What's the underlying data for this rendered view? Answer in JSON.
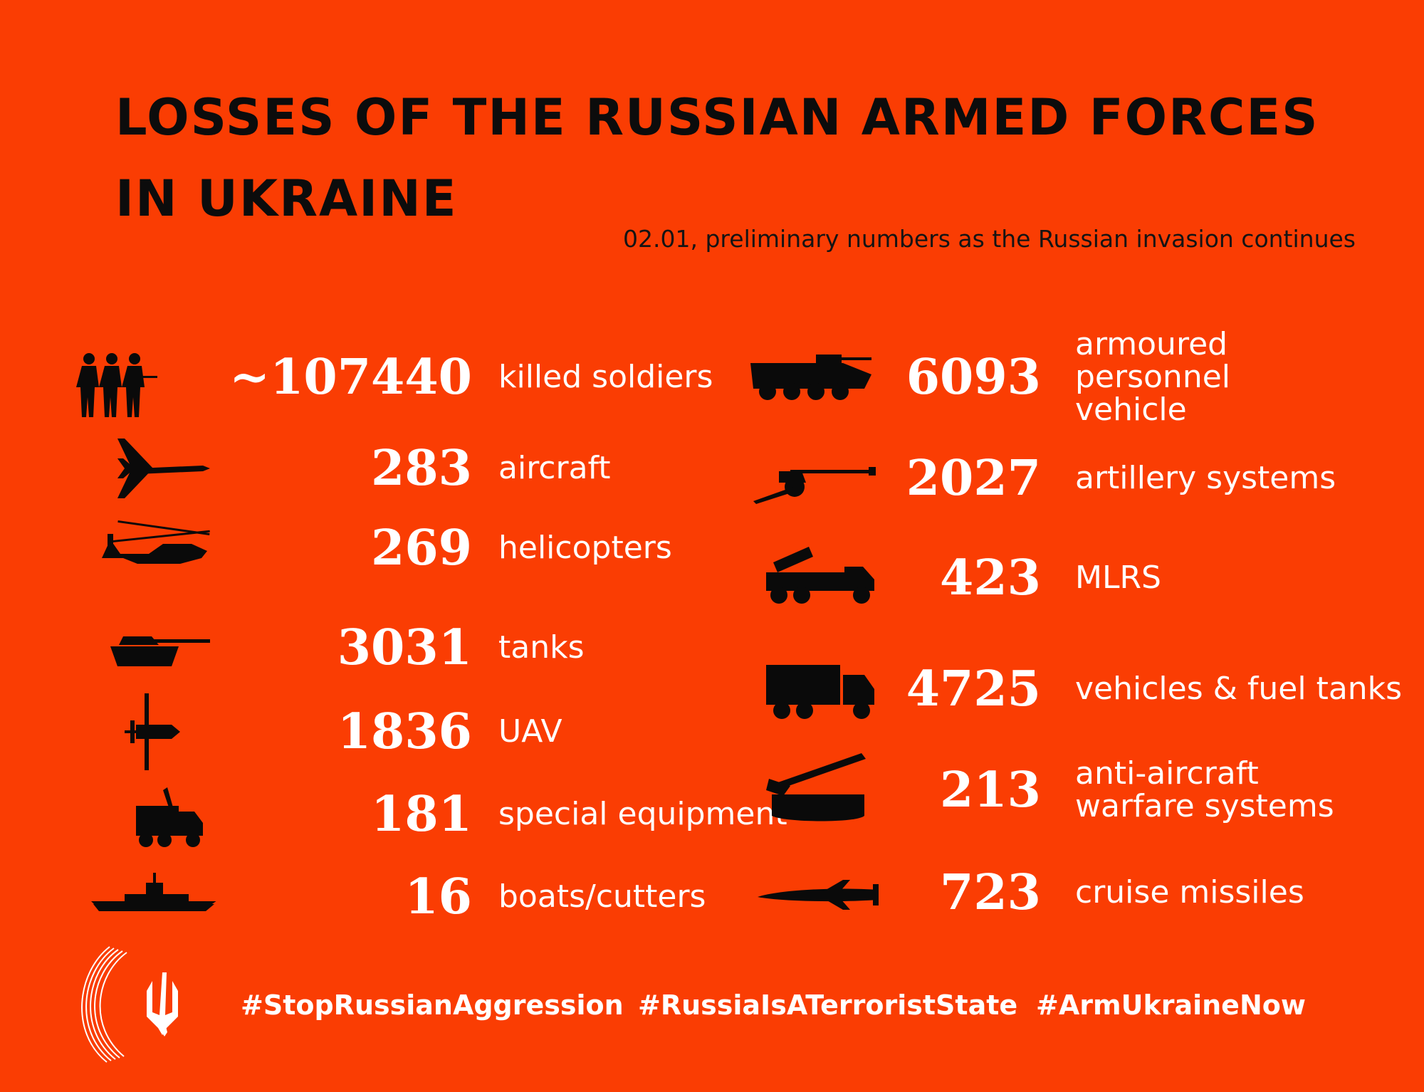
{
  "header": {
    "title": "LOSSES OF THE RUSSIAN ARMED FORCES IN UKRAINE",
    "subtitle": "02.01, preliminary numbers as the Russian invasion continues"
  },
  "left_items": [
    {
      "icon": "soldiers-icon",
      "value": "~107440",
      "label": "killed soldiers"
    },
    {
      "icon": "aircraft-icon",
      "value": "283",
      "label": "aircraft"
    },
    {
      "icon": "helicopter-icon",
      "value": "269",
      "label": "helicopters"
    },
    {
      "icon": "tank-icon",
      "value": "3031",
      "label": "tanks"
    },
    {
      "icon": "uav-icon",
      "value": "1836",
      "label": "UAV"
    },
    {
      "icon": "special-equipment-icon",
      "value": "181",
      "label": "special equipment"
    },
    {
      "icon": "boat-icon",
      "value": "16",
      "label": "boats/cutters"
    }
  ],
  "right_items": [
    {
      "icon": "apc-icon",
      "value": "6093",
      "label": "armoured\npersonnel\nvehicle"
    },
    {
      "icon": "artillery-icon",
      "value": "2027",
      "label": "artillery systems"
    },
    {
      "icon": "mlrs-icon",
      "value": "423",
      "label": "MLRS"
    },
    {
      "icon": "truck-icon",
      "value": "4725",
      "label": "vehicles & fuel tanks"
    },
    {
      "icon": "anti-aircraft-icon",
      "value": "213",
      "label": "anti-aircraft\nwarfare systems"
    },
    {
      "icon": "cruise-missile-icon",
      "value": "723",
      "label": "cruise missiles"
    }
  ],
  "footer": {
    "hashtags": [
      "#StopRussianAggression",
      "#RussiaIsATerroristState",
      "#ArmUkraineNow"
    ]
  },
  "colors": {
    "background": "#FA3D03",
    "text": "#ffffff",
    "title": "#0c0c0c"
  }
}
